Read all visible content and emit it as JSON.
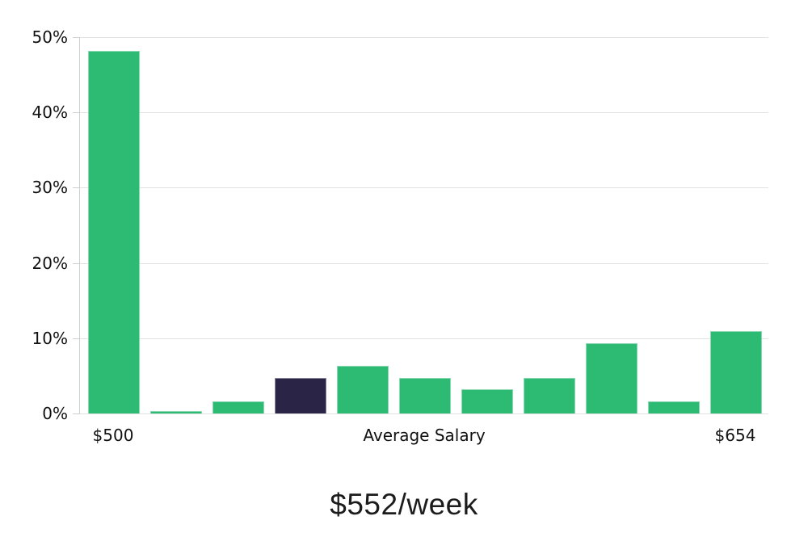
{
  "chart_data": {
    "type": "bar",
    "title": "$552/week",
    "xlabel": "Average Salary",
    "ylabel": "",
    "ylim": [
      0,
      50
    ],
    "grid": true,
    "y_ticks": [
      {
        "value": 0,
        "label": "0%"
      },
      {
        "value": 10,
        "label": "10%"
      },
      {
        "value": 20,
        "label": "20%"
      },
      {
        "value": 30,
        "label": "30%"
      },
      {
        "value": 40,
        "label": "40%"
      },
      {
        "value": 50,
        "label": "50%"
      }
    ],
    "x_ticks": [
      {
        "bar": 0,
        "label": "$500"
      },
      {
        "bar": 5,
        "label": "Average Salary"
      },
      {
        "bar": 10,
        "label": "$654"
      }
    ],
    "values": [
      48.2,
      0.3,
      1.6,
      4.7,
      6.3,
      4.7,
      3.2,
      4.7,
      9.3,
      1.6,
      10.9
    ],
    "highlight_index": 3,
    "colors": {
      "bar": "#2dbb73",
      "highlight_bar": "#2a2547",
      "gridline": "#e2e2e2",
      "axis": "#cfcfcf",
      "text": "#111111"
    }
  }
}
